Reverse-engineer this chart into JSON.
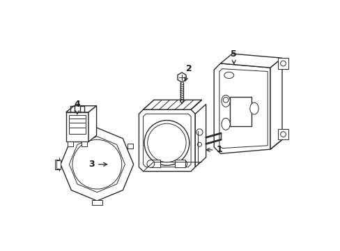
{
  "background_color": "#ffffff",
  "line_color": "#2a2a2a",
  "line_width": 1.0,
  "fig_width": 4.89,
  "fig_height": 3.6,
  "dpi": 100
}
